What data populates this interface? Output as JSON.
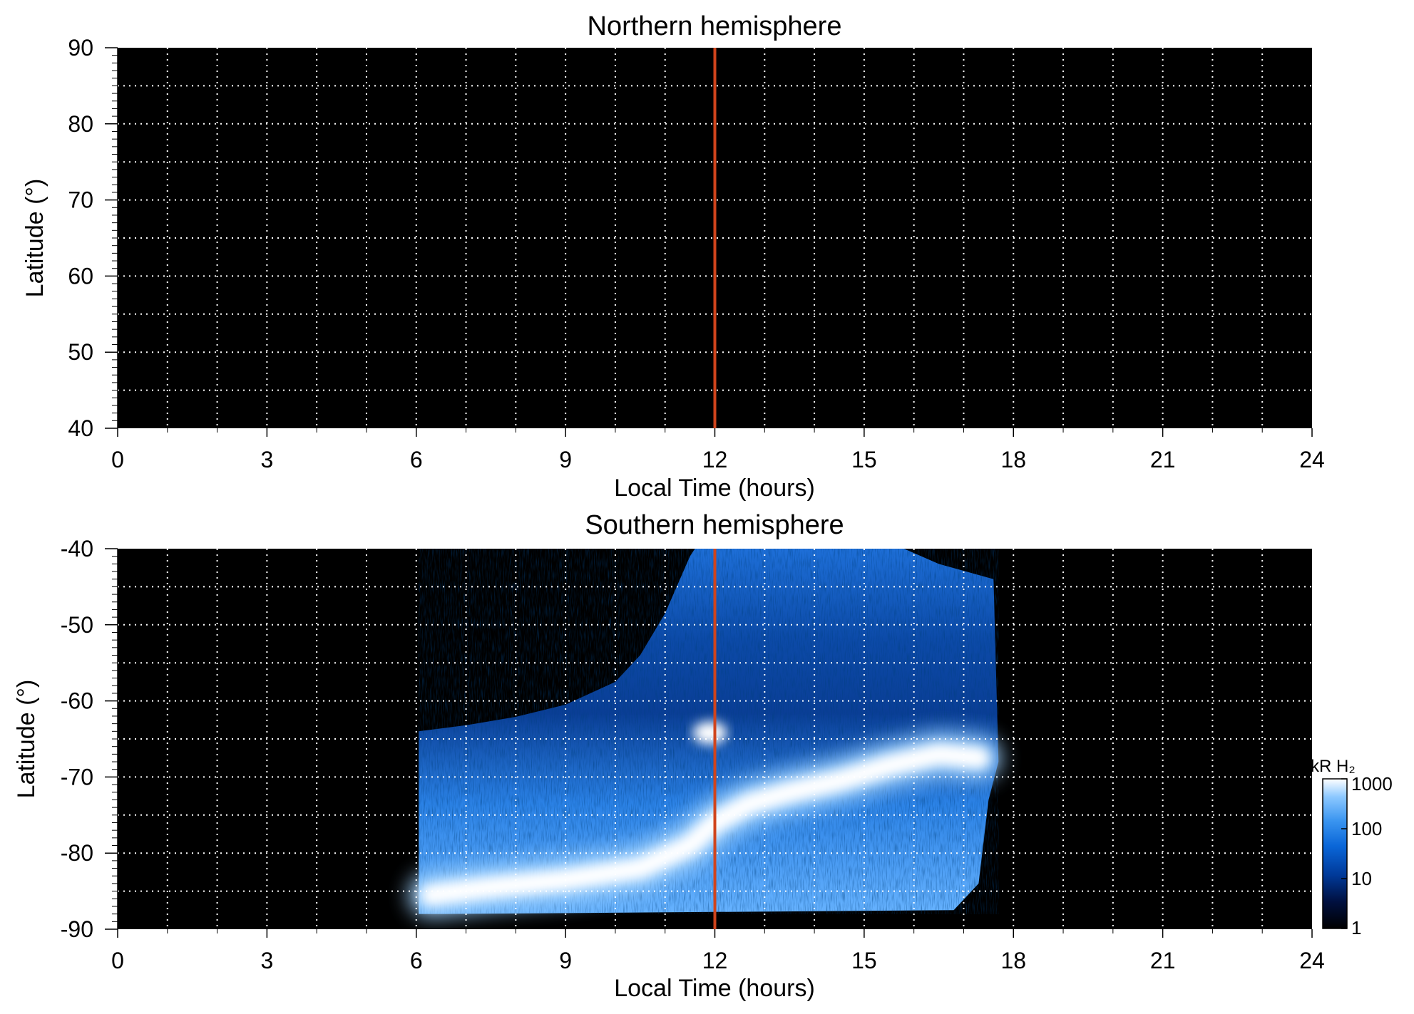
{
  "chart_data": [
    {
      "type": "heatmap",
      "title": "Northern hemisphere",
      "xlabel": "Local Time (hours)",
      "ylabel": "Latitude (°)",
      "xlim": [
        0,
        24
      ],
      "ylim": [
        40,
        90
      ],
      "xticks": [
        "0",
        "3",
        "6",
        "9",
        "12",
        "15",
        "18",
        "21",
        "24"
      ],
      "yticks": [
        "40",
        "50",
        "60",
        "70",
        "80",
        "90"
      ],
      "grid": true,
      "reference_line": {
        "x": 12,
        "color": "#d0441c"
      },
      "emission_region": null
    },
    {
      "type": "heatmap",
      "title": "Southern hemisphere",
      "xlabel": "Local Time (hours)",
      "ylabel": "Latitude (°)",
      "xlim": [
        0,
        24
      ],
      "ylim": [
        -90,
        -40
      ],
      "xticks": [
        "0",
        "3",
        "6",
        "9",
        "12",
        "15",
        "18",
        "21",
        "24"
      ],
      "yticks": [
        "-90",
        "-80",
        "-70",
        "-60",
        "-50",
        "-40"
      ],
      "grid": true,
      "reference_line": {
        "x": 12,
        "color": "#d0441c"
      },
      "emission_region": {
        "coverage_boundary": [
          [
            6.05,
            -88
          ],
          [
            6.05,
            -64
          ],
          [
            7.0,
            -63.2
          ],
          [
            8.0,
            -62.1
          ],
          [
            9.0,
            -60.5
          ],
          [
            10.0,
            -57.5
          ],
          [
            10.5,
            -54.0
          ],
          [
            11.0,
            -48.5
          ],
          [
            11.5,
            -41.0
          ],
          [
            11.6,
            -40
          ],
          [
            15.8,
            -40
          ],
          [
            16.5,
            -42.0
          ],
          [
            17.6,
            -44.0
          ],
          [
            17.7,
            -68.0
          ],
          [
            17.5,
            -73.0
          ],
          [
            17.3,
            -84.0
          ],
          [
            16.8,
            -87.5
          ],
          [
            6.6,
            -88
          ]
        ],
        "main_oval": [
          [
            6.3,
            -85.5
          ],
          [
            7.5,
            -84.5
          ],
          [
            9.0,
            -83.5
          ],
          [
            10.5,
            -82.0
          ],
          [
            11.5,
            -79.0
          ],
          [
            12.0,
            -76.0
          ],
          [
            12.7,
            -73.5
          ],
          [
            13.5,
            -72.0
          ],
          [
            14.5,
            -70.5
          ],
          [
            15.5,
            -68.5
          ],
          [
            16.5,
            -67.0
          ],
          [
            17.3,
            -67.5
          ]
        ],
        "bright_spots": [
          {
            "x": 11.9,
            "y": -64.2
          }
        ],
        "colorscale": [
          "#000000",
          "#001040",
          "#003a9a",
          "#0a66d8",
          "#3a95f0",
          "#8cc8ff",
          "#ffffff"
        ]
      }
    }
  ],
  "colorbar": {
    "title": "kR H₂",
    "scale": "log",
    "ticks": [
      "1",
      "10",
      "100",
      "1000"
    ],
    "range": [
      1,
      1000
    ]
  }
}
